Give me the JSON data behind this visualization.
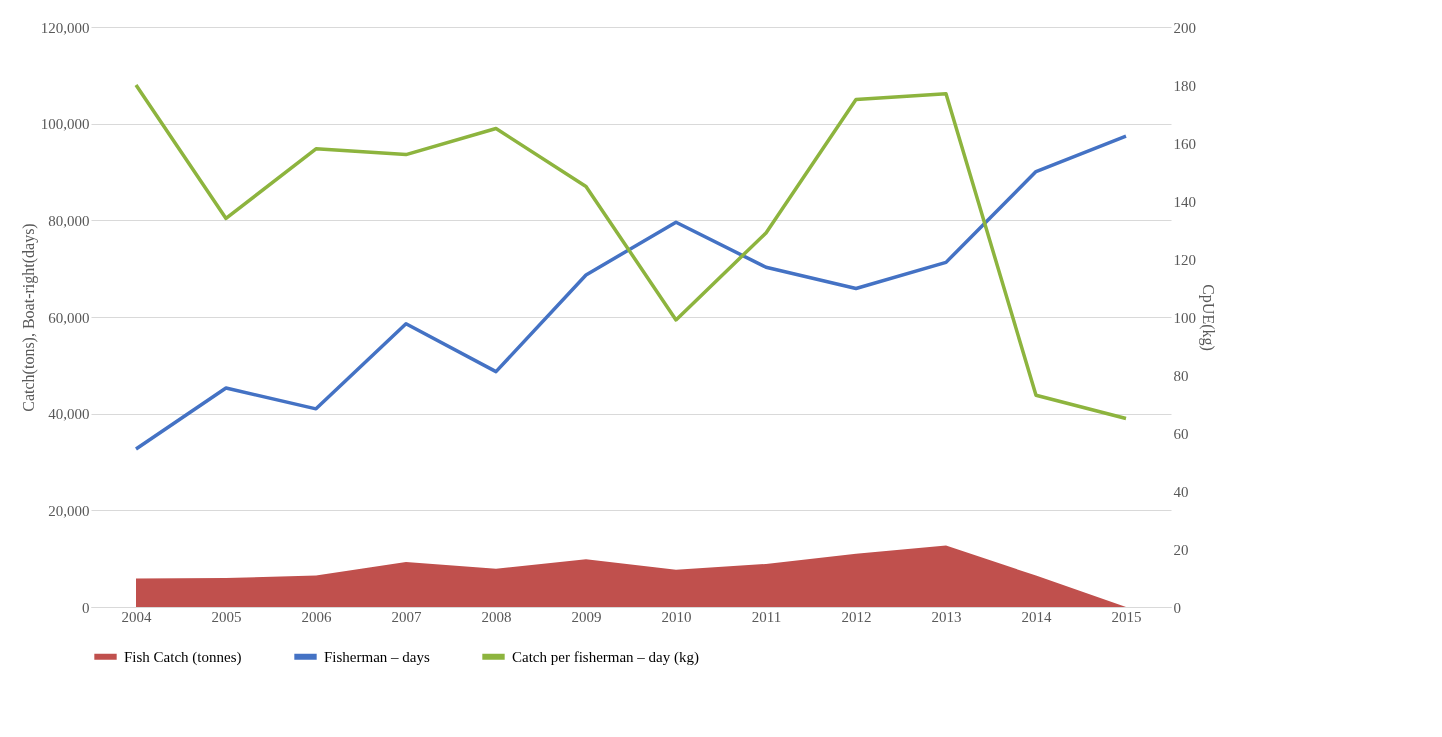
{
  "chart_data": {
    "type": "line",
    "categories": [
      "2004",
      "2005",
      "2006",
      "2007",
      "2008",
      "2009",
      "2010",
      "2011",
      "2012",
      "2013",
      "2014",
      "2015"
    ],
    "ylabel": "Catch(tons), Boat-right(days)",
    "y2label": "CpUE(kg)",
    "ylim": [
      0,
      120000
    ],
    "yticks": [
      {
        "value": 0,
        "label": "0"
      },
      {
        "value": 20000,
        "label": "20,000"
      },
      {
        "value": 40000,
        "label": "40,000"
      },
      {
        "value": 60000,
        "label": "60,000"
      },
      {
        "value": 80000,
        "label": "80,000"
      },
      {
        "value": 100000,
        "label": "100,000"
      },
      {
        "value": 120000,
        "label": "120,000"
      }
    ],
    "y2lim": [
      0,
      200
    ],
    "y2ticks": [
      0,
      20,
      40,
      60,
      80,
      100,
      120,
      140,
      160,
      180,
      200
    ],
    "grid": "y",
    "legend": "bottom",
    "series": [
      {
        "name": "Fish Catch (tonnes)",
        "type": "area",
        "color": "#c0504d",
        "values": [
          5900,
          6000,
          6500,
          9300,
          7900,
          9900,
          7700,
          8900,
          11000,
          12700,
          6500,
          0
        ]
      },
      {
        "name": "Fisherman – days",
        "color": "#4472c4",
        "values": [
          32700,
          45300,
          41000,
          58600,
          48700,
          68700,
          79600,
          70300,
          65900,
          71300,
          90100,
          97400
        ]
      },
      {
        "name": "Catch per fisherman – day (kg)",
        "axis": "y2",
        "color": "#8db43e",
        "values": [
          180,
          134,
          158,
          156,
          165,
          145,
          99,
          129,
          175,
          177,
          73,
          65
        ]
      }
    ]
  }
}
